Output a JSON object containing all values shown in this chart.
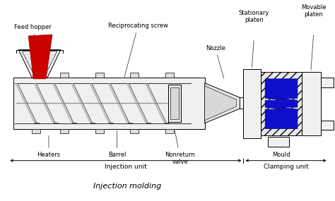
{
  "title": "Injection molding",
  "bg": "#ffffff",
  "lc": "#000000",
  "labels": {
    "feed_hopper": "Feed hopper",
    "reciprocating_screw": "Reciprocating screw",
    "nozzle": "Nozzle",
    "stationary_platen": "Stationary\nplaten",
    "movable_platen": "Movable\nplaten",
    "heaters": "Heaters",
    "barrel": "Barrel",
    "nonreturn_valve": "Nonreturn\nvalve",
    "mould": "Mould",
    "injection_unit": "Injection unit",
    "clamping_unit": "Clamping unit"
  }
}
